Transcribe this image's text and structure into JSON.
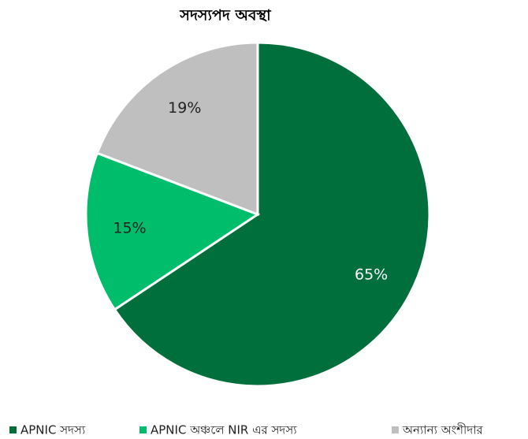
{
  "chart_data": {
    "type": "pie",
    "title": "সদস্যপদ অবস্থা",
    "categories": [
      "APNIC সদস্য",
      "APNIC অঞ্চলে  NIR এর  সদস্য",
      "অন্যান্য  অংশীদার"
    ],
    "values": [
      65,
      15,
      19
    ],
    "value_labels": [
      "65%",
      "15%",
      "19%"
    ],
    "colors": [
      "#006f3c",
      "#00bd6c",
      "#bfbfbf"
    ],
    "legend": "bottom"
  }
}
